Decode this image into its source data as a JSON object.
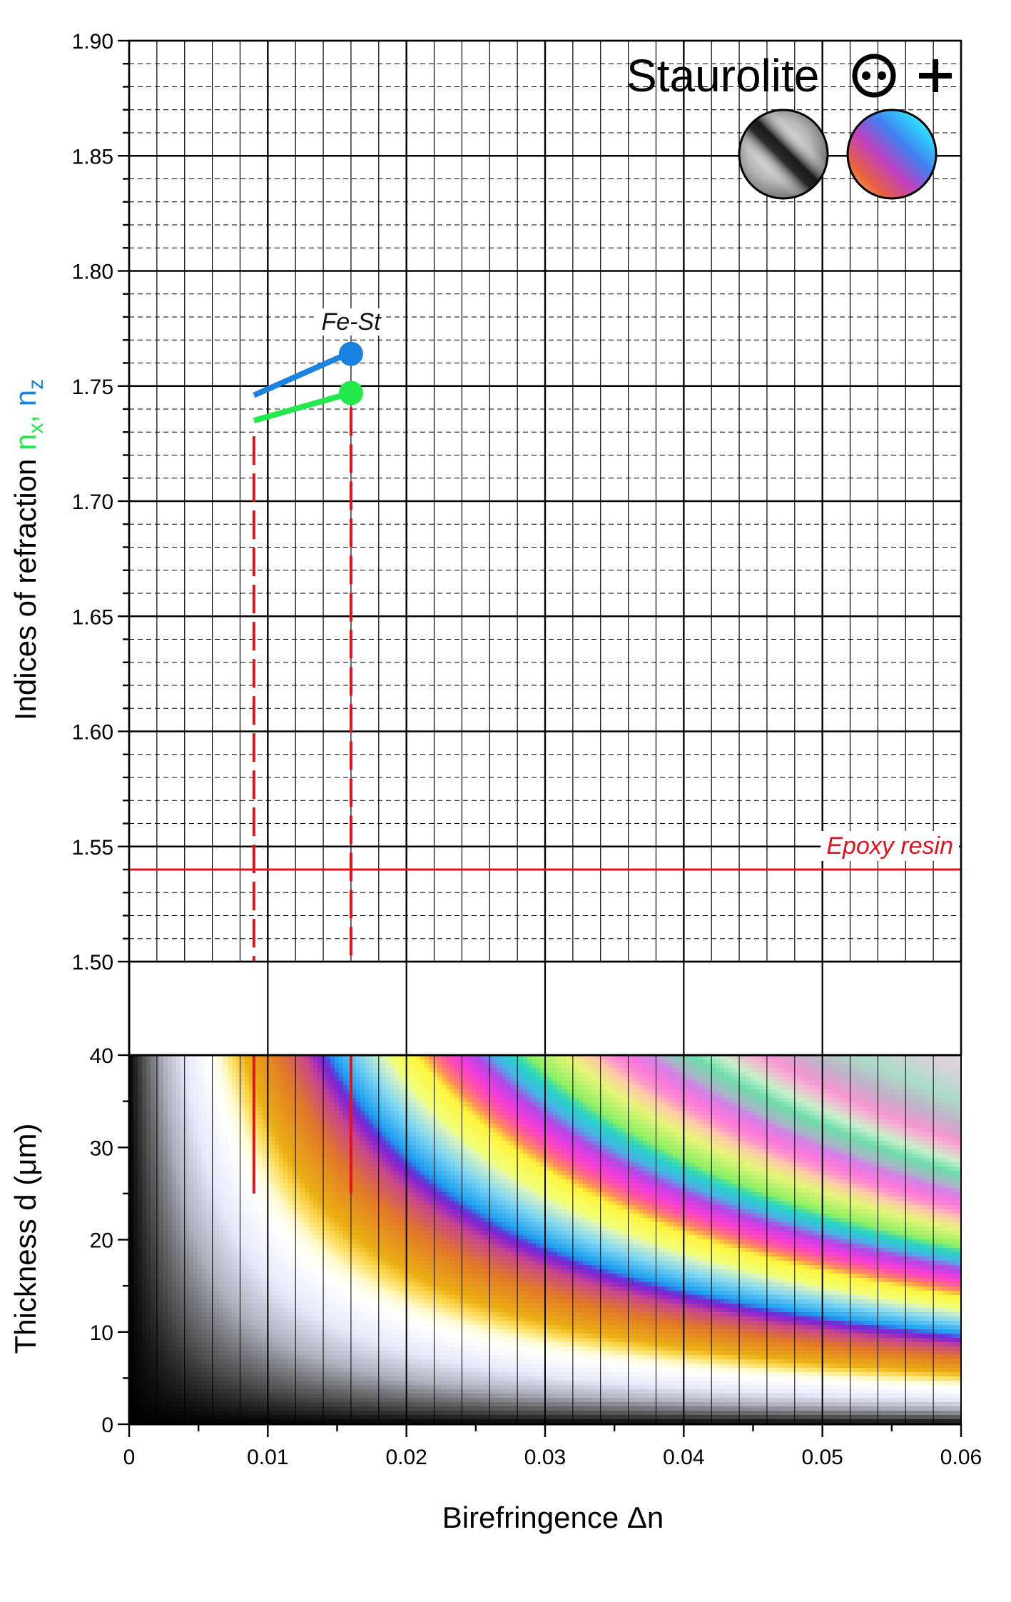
{
  "chart_data": {
    "type": "line",
    "title": "Staurolite",
    "xlabel": "Birefringence  Δn",
    "ylabel_top": {
      "prefix": "Indices of refraction  ",
      "nx": "n",
      "nx_sub": "x",
      "sep": ", ",
      "nz": "n",
      "nz_sub": "z"
    },
    "ylabel_bottom": "Thickness  d (μm)",
    "x_ticks": [
      "0",
      "0.01",
      "0.02",
      "0.03",
      "0.04",
      "0.05",
      "0.06"
    ],
    "xlim": [
      0,
      0.06
    ],
    "top_panel": {
      "ylim": [
        1.5,
        1.9
      ],
      "y_ticks": [
        "1.50",
        "1.55",
        "1.60",
        "1.65",
        "1.70",
        "1.75",
        "1.80",
        "1.85",
        "1.90"
      ],
      "grid": true,
      "epoxy": {
        "label": "Epoxy resin",
        "n": 1.54,
        "color": "#e0141e"
      },
      "point_label": "Fe-St",
      "series": [
        {
          "name": "nz",
          "color": "#1a82e0",
          "line": [
            [
              0.009,
              1.746
            ],
            [
              0.016,
              1.764
            ]
          ],
          "point": [
            0.016,
            1.764
          ]
        },
        {
          "name": "nx",
          "color": "#22e84a",
          "line": [
            [
              0.009,
              1.735
            ],
            [
              0.016,
              1.747
            ]
          ],
          "point": [
            0.016,
            1.747
          ]
        }
      ],
      "birefringence_range": [
        0.009,
        0.016
      ]
    },
    "bottom_panel": {
      "type": "heatmap",
      "description_free": true,
      "ylim": [
        0,
        40
      ],
      "y_ticks": [
        "0",
        "10",
        "20",
        "30",
        "40"
      ],
      "dropline_end_thickness": 25
    },
    "colors": {
      "grid_major": "#000000",
      "grid_minor": "#000000",
      "nz": "#1a82e0",
      "nx": "#22e84a",
      "epoxy": "#e0141e",
      "dropline": "#e0141e"
    }
  }
}
